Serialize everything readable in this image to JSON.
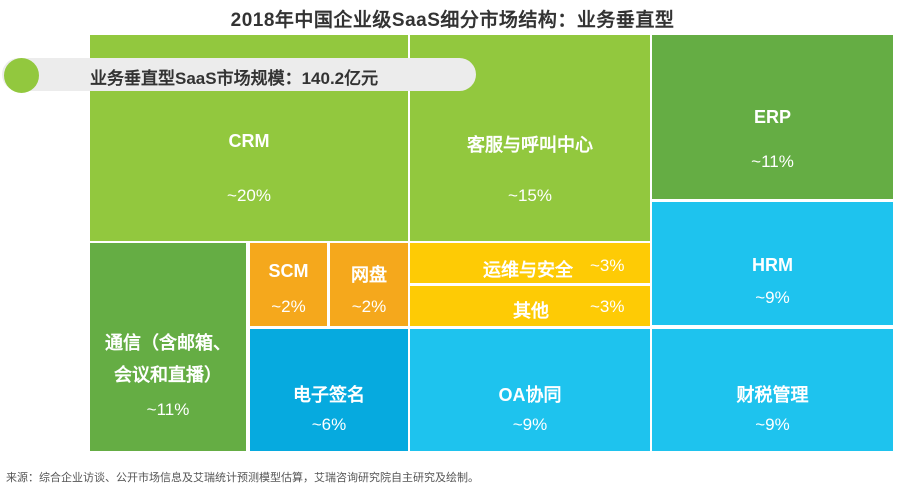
{
  "title": "2018年中国企业级SaaS细分市场结构：业务垂直型",
  "market_scale": "业务垂直型SaaS市场规模：140.2亿元",
  "source": "来源：综合企业访谈、公开市场信息及艾瑞统计预测模型估算，艾瑞咨询研究院自主研究及绘制。",
  "colors": {
    "lime": "#92c83e",
    "green": "#65ad44",
    "orange": "#f5a81c",
    "yellow": "#fecb05",
    "cyan": "#1ec3ee",
    "blue": "#06aadf"
  },
  "chart_data": {
    "type": "treemap",
    "title": "2018年中国企业级SaaS细分市场结构：业务垂直型",
    "unit": "%",
    "items": [
      {
        "name": "CRM",
        "label": "CRM",
        "value": 20,
        "value_label": "~20%",
        "color": "#92c83e"
      },
      {
        "name": "客服与呼叫中心",
        "label": "客服与呼叫中心",
        "value": 15,
        "value_label": "~15%",
        "color": "#92c83e"
      },
      {
        "name": "ERP",
        "label": "ERP",
        "value": 11,
        "value_label": "~11%",
        "color": "#65ad44"
      },
      {
        "name": "HRM",
        "label": "HRM",
        "value": 9,
        "value_label": "~9%",
        "color": "#1ec3ee"
      },
      {
        "name": "通信（含邮箱、会议和直播）",
        "label": [
          "通信（含邮箱、",
          "会议和直播）"
        ],
        "value": 11,
        "value_label": "~11%",
        "color": "#65ad44"
      },
      {
        "name": "SCM",
        "label": "SCM",
        "value": 2,
        "value_label": "~2%",
        "color": "#f5a81c"
      },
      {
        "name": "网盘",
        "label": "网盘",
        "value": 2,
        "value_label": "~2%",
        "color": "#f5a81c"
      },
      {
        "name": "运维与安全",
        "label": "运维与安全",
        "value": 3,
        "value_label": "~3%",
        "color": "#fecb05"
      },
      {
        "name": "其他",
        "label": "其他",
        "value": 3,
        "value_label": "~3%",
        "color": "#fecb05"
      },
      {
        "name": "电子签名",
        "label": "电子签名",
        "value": 6,
        "value_label": "~6%",
        "color": "#06aadf"
      },
      {
        "name": "OA协同",
        "label": "OA协同",
        "value": 9,
        "value_label": "~9%",
        "color": "#1ec3ee"
      },
      {
        "name": "财税管理",
        "label": "财税管理",
        "value": 9,
        "value_label": "~9%",
        "color": "#1ec3ee"
      }
    ]
  }
}
